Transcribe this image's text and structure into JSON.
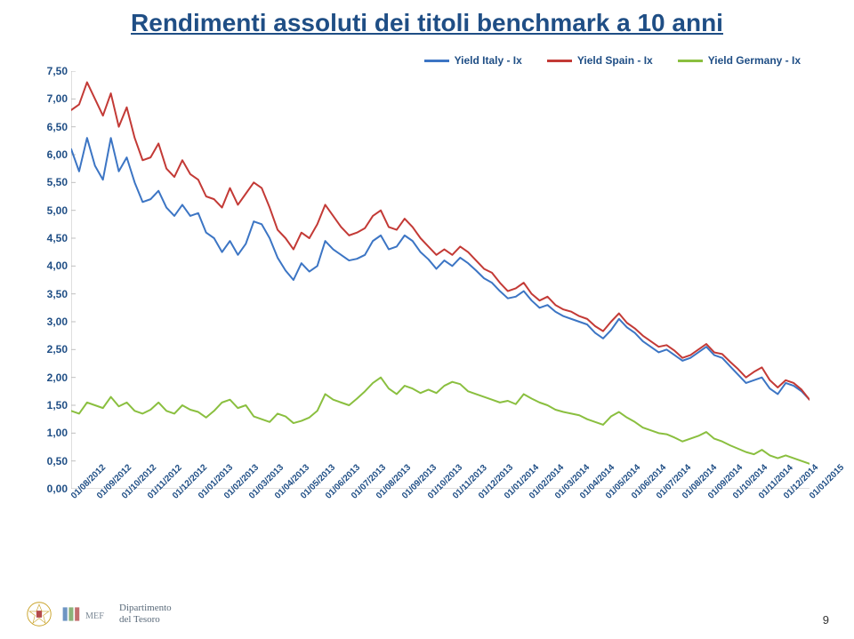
{
  "title": "Rendimenti assoluti dei titoli benchmark a 10 anni",
  "title_fontsize": 28,
  "title_color": "#1f4e85",
  "chart": {
    "type": "line",
    "background_color": "#ffffff",
    "axis_color": "#bfbfbf",
    "axis_line_width": 1,
    "text_color": "#1f4e85",
    "yaxis": {
      "min": 0.0,
      "max": 7.5,
      "step": 0.5,
      "ticks": [
        "0,00",
        "0,50",
        "1,00",
        "1,50",
        "2,00",
        "2,50",
        "3,00",
        "3,50",
        "4,00",
        "4,50",
        "5,00",
        "5,50",
        "6,00",
        "6,50",
        "7,00",
        "7,50"
      ],
      "label_fontsize": 12
    },
    "xaxis": {
      "labels": [
        "01/08/2012",
        "01/09/2012",
        "01/10/2012",
        "01/11/2012",
        "01/12/2012",
        "01/01/2013",
        "01/02/2013",
        "01/03/2013",
        "01/04/2013",
        "01/05/2013",
        "01/06/2013",
        "01/07/2013",
        "01/08/2013",
        "01/09/2013",
        "01/10/2013",
        "01/11/2013",
        "01/12/2013",
        "01/01/2014",
        "01/02/2014",
        "01/03/2014",
        "01/04/2014",
        "01/05/2014",
        "01/06/2014",
        "01/07/2014",
        "01/08/2014",
        "01/09/2014",
        "01/10/2014",
        "01/11/2014",
        "01/12/2014",
        "01/01/2015"
      ],
      "n_points": 30,
      "label_fontsize": 10
    },
    "series": [
      {
        "name": "Yield Italy - Ix",
        "color": "#3c75c4",
        "line_width": 2,
        "values": [
          6.1,
          5.7,
          6.3,
          5.8,
          5.55,
          6.3,
          5.7,
          5.95,
          5.5,
          5.15,
          5.2,
          5.35,
          5.05,
          4.9,
          5.1,
          4.9,
          4.95,
          4.6,
          4.5,
          4.25,
          4.45,
          4.2,
          4.4,
          4.8,
          4.75,
          4.5,
          4.15,
          3.92,
          3.75,
          4.05,
          3.9,
          4.0,
          4.45,
          4.3,
          4.2,
          4.1,
          4.13,
          4.2,
          4.45,
          4.55,
          4.3,
          4.35,
          4.55,
          4.45,
          4.25,
          4.12,
          3.95,
          4.1,
          4.0,
          4.15,
          4.05,
          3.92,
          3.78,
          3.7,
          3.55,
          3.42,
          3.45,
          3.55,
          3.38,
          3.25,
          3.3,
          3.18,
          3.1,
          3.05,
          3.0,
          2.95,
          2.8,
          2.7,
          2.85,
          3.05,
          2.9,
          2.8,
          2.65,
          2.55,
          2.45,
          2.5,
          2.4,
          2.3,
          2.35,
          2.45,
          2.55,
          2.4,
          2.35,
          2.2,
          2.05,
          1.9,
          1.95,
          2.0,
          1.8,
          1.7,
          1.9,
          1.85,
          1.75,
          1.6
        ]
      },
      {
        "name": "Yield Spain - Ix",
        "color": "#c33a36",
        "line_width": 2,
        "values": [
          6.8,
          6.9,
          7.3,
          7.0,
          6.7,
          7.1,
          6.5,
          6.85,
          6.3,
          5.9,
          5.95,
          6.2,
          5.75,
          5.6,
          5.9,
          5.65,
          5.55,
          5.25,
          5.2,
          5.05,
          5.4,
          5.1,
          5.3,
          5.5,
          5.4,
          5.05,
          4.65,
          4.5,
          4.3,
          4.6,
          4.5,
          4.75,
          5.1,
          4.9,
          4.7,
          4.55,
          4.6,
          4.68,
          4.9,
          5.0,
          4.7,
          4.65,
          4.85,
          4.7,
          4.5,
          4.35,
          4.2,
          4.3,
          4.2,
          4.35,
          4.25,
          4.1,
          3.95,
          3.88,
          3.7,
          3.55,
          3.6,
          3.7,
          3.5,
          3.38,
          3.45,
          3.3,
          3.22,
          3.18,
          3.1,
          3.05,
          2.92,
          2.83,
          3.0,
          3.15,
          2.98,
          2.88,
          2.75,
          2.65,
          2.55,
          2.58,
          2.48,
          2.35,
          2.4,
          2.5,
          2.6,
          2.45,
          2.42,
          2.28,
          2.15,
          2.0,
          2.1,
          2.18,
          1.95,
          1.82,
          1.95,
          1.9,
          1.78,
          1.6
        ]
      },
      {
        "name": "Yield Germany - Ix",
        "color": "#8abf3f",
        "line_width": 2,
        "values": [
          1.4,
          1.35,
          1.55,
          1.5,
          1.45,
          1.65,
          1.48,
          1.55,
          1.4,
          1.35,
          1.42,
          1.55,
          1.4,
          1.35,
          1.5,
          1.42,
          1.38,
          1.28,
          1.4,
          1.55,
          1.6,
          1.45,
          1.5,
          1.3,
          1.25,
          1.2,
          1.35,
          1.3,
          1.18,
          1.22,
          1.28,
          1.4,
          1.7,
          1.6,
          1.55,
          1.5,
          1.62,
          1.75,
          1.9,
          2.0,
          1.8,
          1.7,
          1.85,
          1.8,
          1.72,
          1.78,
          1.72,
          1.85,
          1.92,
          1.88,
          1.75,
          1.7,
          1.65,
          1.6,
          1.55,
          1.58,
          1.52,
          1.7,
          1.62,
          1.55,
          1.5,
          1.42,
          1.38,
          1.35,
          1.32,
          1.25,
          1.2,
          1.15,
          1.3,
          1.38,
          1.28,
          1.2,
          1.1,
          1.05,
          1.0,
          0.98,
          0.92,
          0.85,
          0.9,
          0.95,
          1.02,
          0.9,
          0.85,
          0.78,
          0.72,
          0.66,
          0.62,
          0.7,
          0.6,
          0.55,
          0.6,
          0.55,
          0.5,
          0.45
        ]
      }
    ]
  },
  "legend": {
    "fontsize": 12,
    "items": [
      {
        "label": "Yield Italy - Ix",
        "color": "#3c75c4"
      },
      {
        "label": "Yield Spain - Ix",
        "color": "#c33a36"
      },
      {
        "label": "Yield Germany - Ix",
        "color": "#8abf3f"
      }
    ]
  },
  "footer": {
    "dept": "Dipartimento",
    "sub": "del Tesoro",
    "mef_label": "MEF",
    "emblem_gold": "#c9a227",
    "emblem_blue": "#4a7bb5",
    "emblem_red": "#b44b4b",
    "emblem_green": "#6fa05a",
    "text_color": "#5a6a7a"
  },
  "page_number": "9"
}
